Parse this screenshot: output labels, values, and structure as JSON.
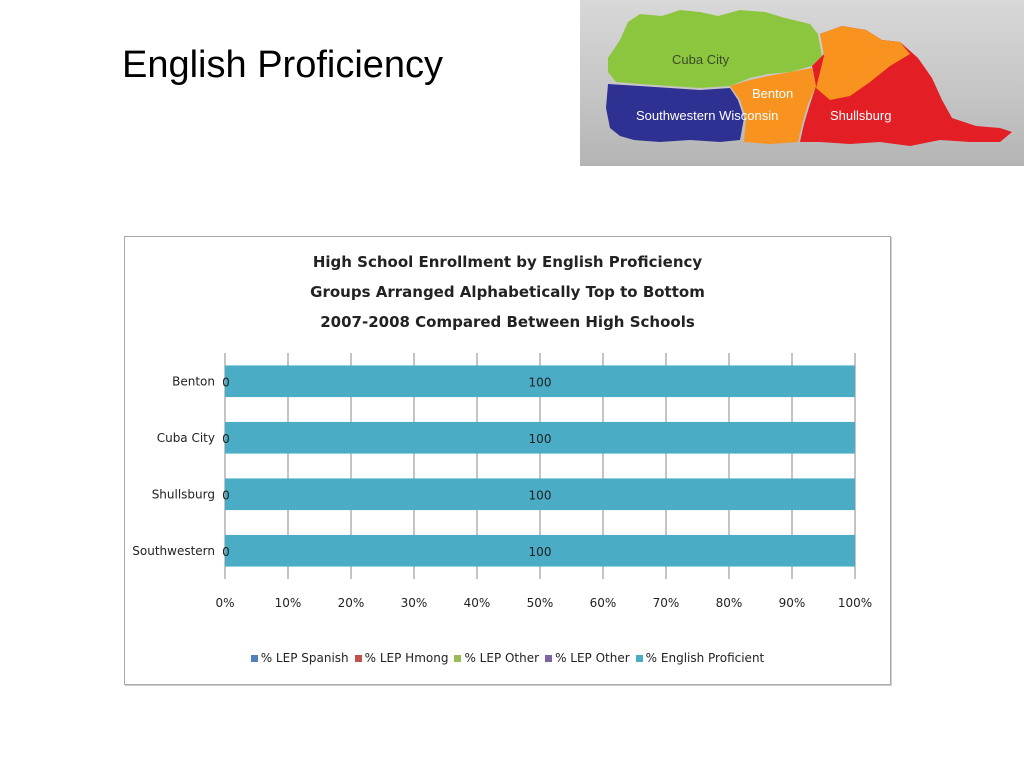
{
  "slide": {
    "title": "English Proficiency"
  },
  "map": {
    "regions": [
      {
        "label": "Cuba City",
        "color": "#8cc63f"
      },
      {
        "label": "Benton",
        "color": "#f7931e"
      },
      {
        "label": "Southwestern Wisconsin",
        "color": "#2e3192"
      },
      {
        "label": "Shullsburg",
        "color": "#e31e24"
      }
    ]
  },
  "chart_data": {
    "type": "bar",
    "orientation": "horizontal",
    "stacked": "percent",
    "title_lines": [
      "High School Enrollment by English Proficiency",
      "Groups Arranged Alphabetically Top to Bottom",
      "2007-2008 Compared Between High Schools"
    ],
    "categories": [
      "Benton",
      "Cuba City",
      "Shullsburg",
      "Southwestern"
    ],
    "series": [
      {
        "name": "% LEP Spanish",
        "color": "#4f81bd",
        "values": [
          0,
          0,
          0,
          0
        ]
      },
      {
        "name": "% LEP Hmong",
        "color": "#c0504d",
        "values": [
          0,
          0,
          0,
          0
        ]
      },
      {
        "name": "% LEP Other",
        "color": "#9bbb59",
        "values": [
          0,
          0,
          0,
          0
        ]
      },
      {
        "name": "% LEP Other",
        "color": "#8064a2",
        "values": [
          0,
          0,
          0,
          0
        ]
      },
      {
        "name": "% English Proficient",
        "color": "#4bacc6",
        "values": [
          100,
          100,
          100,
          100
        ]
      }
    ],
    "data_labels": {
      "first_series": [
        "0",
        "0",
        "0",
        "0"
      ],
      "last_series": [
        "100",
        "100",
        "100",
        "100"
      ]
    },
    "x_ticks": [
      "0%",
      "10%",
      "20%",
      "30%",
      "40%",
      "50%",
      "60%",
      "70%",
      "80%",
      "90%",
      "100%"
    ],
    "xlim": [
      0,
      100
    ],
    "grid": true,
    "legend_position": "bottom"
  }
}
